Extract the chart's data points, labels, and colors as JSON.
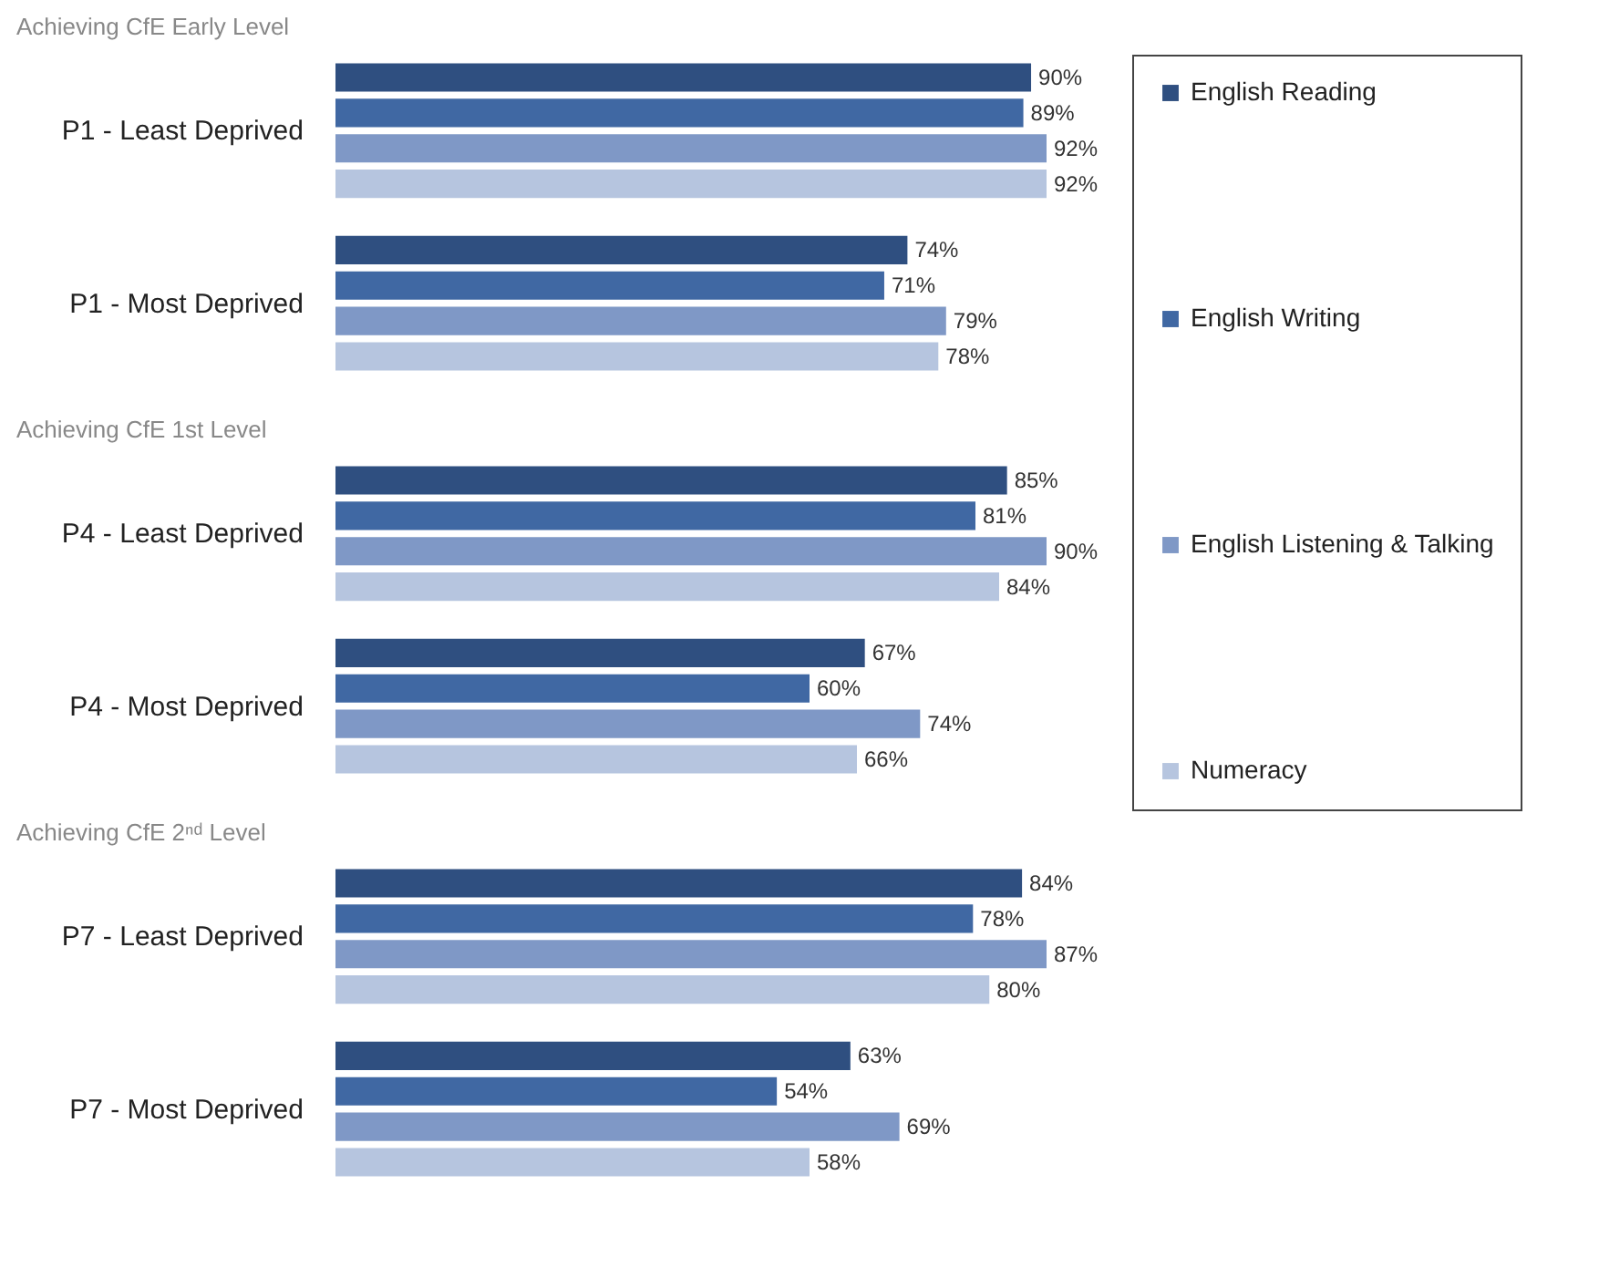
{
  "chart_data": [
    {
      "type": "bar",
      "orientation": "horizontal",
      "title": "Achieving CfE Early Level",
      "categories": [
        "P1 - Least Deprived",
        "P1 - Most Deprived"
      ],
      "legend": "right",
      "series": [
        {
          "name": "English Reading",
          "color": "#2f4f80",
          "values": [
            90,
            74
          ],
          "value_labels": [
            "90%",
            "74%"
          ]
        },
        {
          "name": "English Writing",
          "color": "#4068a3",
          "values": [
            89,
            71
          ],
          "value_labels": [
            "89%",
            "71%"
          ]
        },
        {
          "name": "English Listening & Talking",
          "color": "#7f98c6",
          "values": [
            92,
            79
          ],
          "value_labels": [
            "92%",
            "79%"
          ]
        },
        {
          "name": "Numeracy",
          "color": "#b6c5df",
          "values": [
            92,
            78
          ],
          "value_labels": [
            "92%",
            "78%"
          ]
        }
      ]
    },
    {
      "type": "bar",
      "orientation": "horizontal",
      "title": "Achieving CfE 1st Level",
      "categories": [
        "P4 - Least Deprived",
        "P4 - Most Deprived"
      ],
      "legend": "right",
      "series": [
        {
          "name": "English Reading",
          "color": "#2f4f80",
          "values": [
            85,
            67
          ],
          "value_labels": [
            "85%",
            "67%"
          ]
        },
        {
          "name": "English Writing",
          "color": "#4068a3",
          "values": [
            81,
            60
          ],
          "value_labels": [
            "81%",
            "60%"
          ]
        },
        {
          "name": "English Listening & Talking",
          "color": "#7f98c6",
          "values": [
            90,
            74
          ],
          "value_labels": [
            "90%",
            "74%"
          ]
        },
        {
          "name": "Numeracy",
          "color": "#b6c5df",
          "values": [
            84,
            66
          ],
          "value_labels": [
            "84%",
            "66%"
          ]
        }
      ]
    },
    {
      "type": "bar",
      "orientation": "horizontal",
      "title": "Achieving CfE 2ⁿᵈ Level",
      "categories": [
        "P7 - Least Deprived",
        "P7 - Most Deprived"
      ],
      "legend": "right",
      "series": [
        {
          "name": "English Reading",
          "color": "#2f4f80",
          "values": [
            84,
            63
          ],
          "value_labels": [
            "84%",
            "63%"
          ]
        },
        {
          "name": "English Writing",
          "color": "#4068a3",
          "values": [
            78,
            54
          ],
          "value_labels": [
            "78%",
            "54%"
          ]
        },
        {
          "name": "English Listening & Talking",
          "color": "#7f98c6",
          "values": [
            87,
            69
          ],
          "value_labels": [
            "87%",
            "69%"
          ]
        },
        {
          "name": "Numeracy",
          "color": "#b6c5df",
          "values": [
            80,
            58
          ],
          "value_labels": [
            "80%",
            "58%"
          ]
        }
      ]
    }
  ]
}
